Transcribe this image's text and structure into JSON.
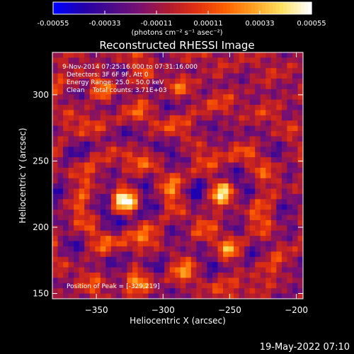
{
  "chart_data": {
    "type": "heatmap",
    "title": "Reconstructed RHESSI Image",
    "xlabel": "Heliocentric X (arcsec)",
    "ylabel": "Heliocentric Y (arcsec)",
    "xlim": [
      -383,
      -195
    ],
    "ylim": [
      146,
      332
    ],
    "x_ticks": [
      -350,
      -300,
      -250,
      -200
    ],
    "y_ticks": [
      150,
      200,
      250,
      300
    ],
    "colorbar": {
      "min": -0.00055,
      "max": 0.00055,
      "tick_values": [
        -0.00055,
        -0.00033,
        -0.00011,
        0.00011,
        0.00033,
        0.00055
      ],
      "tick_labels": [
        "-0.00055",
        "-0.00033",
        "-0.00011",
        "0.00011",
        "0.00033",
        "0.00055"
      ],
      "unit_label": "(photons cm⁻² s⁻¹ asec⁻²)"
    },
    "colormap": [
      "#0000ff",
      "#2200aa",
      "#4a0a8a",
      "#7a1070",
      "#b01a30",
      "#e03010",
      "#ff6000",
      "#ffa020",
      "#ffe060",
      "#ffffff"
    ],
    "grid": false,
    "peak": {
      "x": -329,
      "y": 219
    },
    "sources": [
      {
        "x": -329,
        "y": 219,
        "amplitude": 1.0
      },
      {
        "x": -255,
        "y": 225,
        "amplitude": 0.75
      },
      {
        "x": -345,
        "y": 305,
        "amplitude": 0.6
      },
      {
        "x": -250,
        "y": 180,
        "amplitude": 0.55
      },
      {
        "x": -290,
        "y": 305,
        "amplitude": 0.45
      },
      {
        "x": -320,
        "y": 160,
        "amplitude": 0.5
      }
    ],
    "annotations": [
      "9-Nov-2014 07:25:16.000 to 07:31:16.000",
      "Detectors: 3F 6F 9F, Att 0",
      "Energy Range: 25.0 - 50.0 keV",
      "Clean    Total counts: 3.71E+03"
    ],
    "peak_label": "Position of Peak = [-329,219]"
  },
  "footer": {
    "timestamp": "19-May-2022 07:10"
  }
}
